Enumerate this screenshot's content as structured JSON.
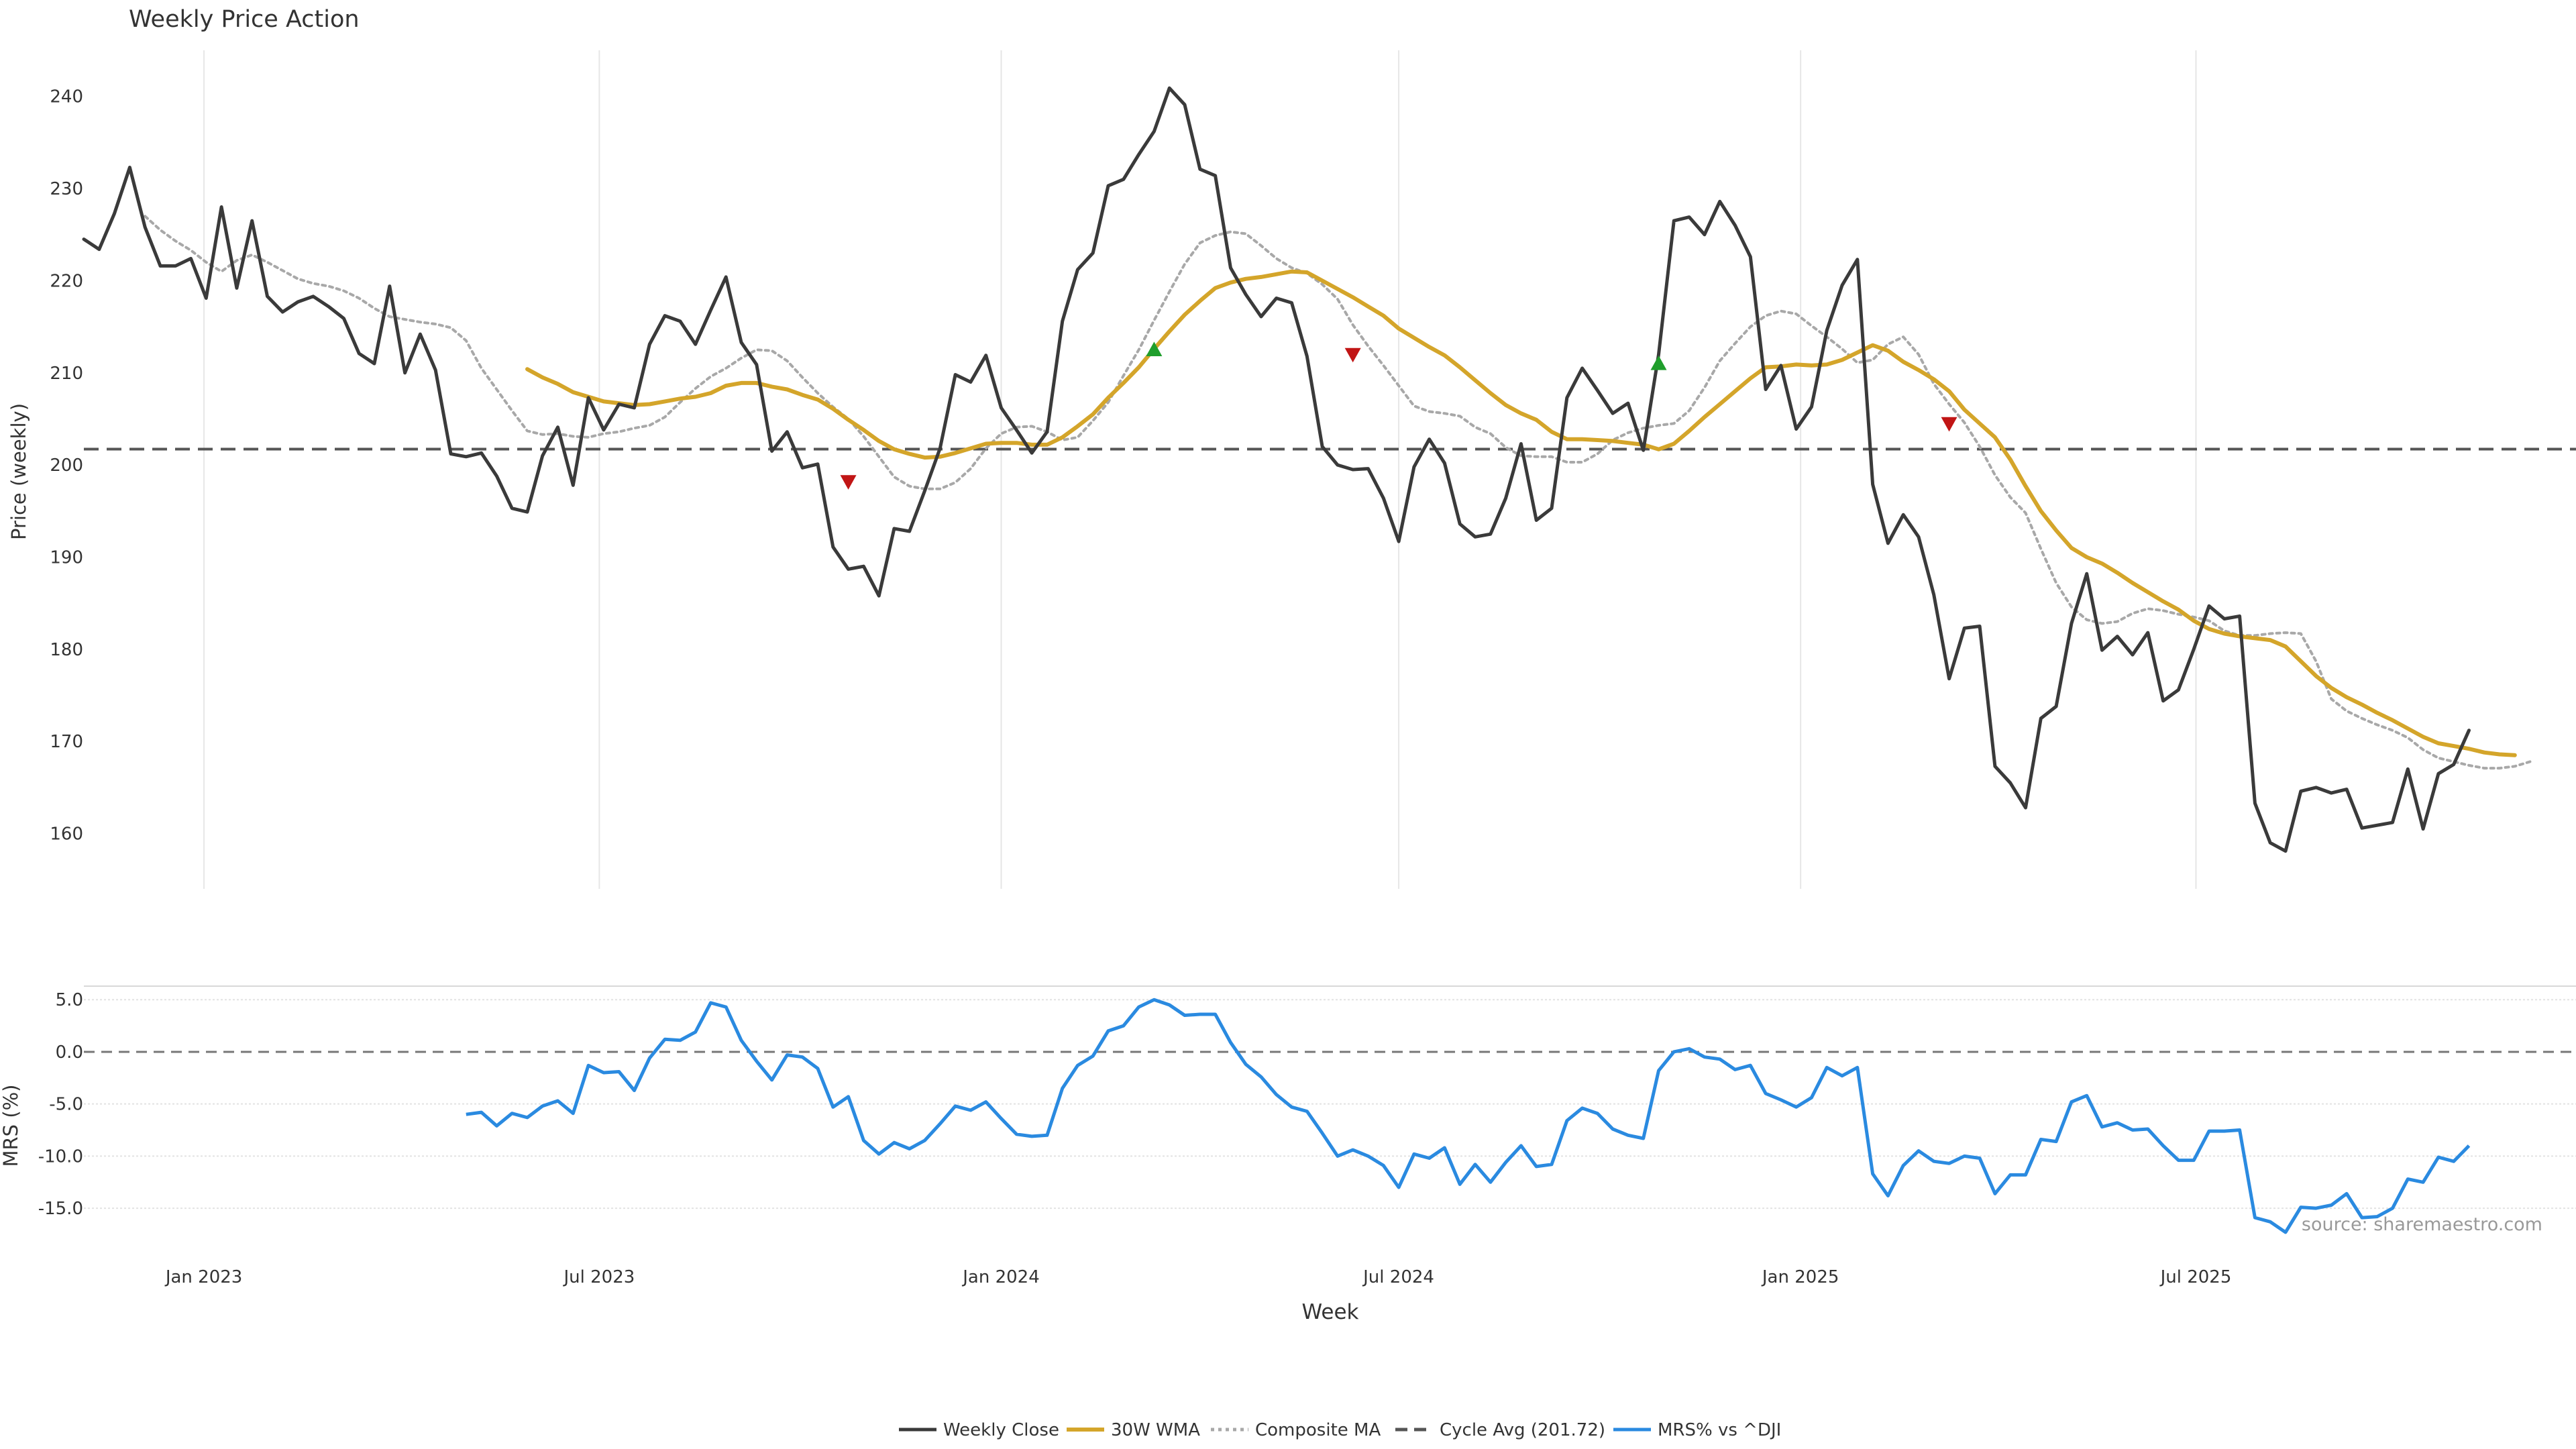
{
  "title": "Weekly Price Action",
  "source": "source: sharemaestro.com",
  "colors": {
    "close": "#3a3a3a",
    "wma": "#d4a52a",
    "composite": "#a8a8a8",
    "cycle": "#555555",
    "mrs": "#2a8ae0",
    "buy": "#1f9e2c",
    "sell": "#c11515",
    "grid": "#e6e6e6"
  },
  "chart_data": [
    {
      "type": "line",
      "title": "Weekly Price Action",
      "xlabel": "",
      "ylabel": "Price (weekly)",
      "ylim": [
        154,
        245
      ],
      "yticks": [
        160,
        170,
        180,
        190,
        200,
        210,
        220,
        230,
        240
      ],
      "x_start": "2022-11-07",
      "x_step_days": 7,
      "xlim": [
        "2022-11-07",
        "2025-12-22"
      ],
      "xticks": [
        {
          "date": "2023-01-01",
          "label": "Jan 2023"
        },
        {
          "date": "2023-07-01",
          "label": "Jul 2023"
        },
        {
          "date": "2024-01-01",
          "label": "Jan 2024"
        },
        {
          "date": "2024-07-01",
          "label": "Jul 2024"
        },
        {
          "date": "2025-01-01",
          "label": "Jan 2025"
        },
        {
          "date": "2025-07-01",
          "label": "Jul 2025"
        }
      ],
      "cycle_avg": 201.72,
      "series": [
        {
          "name": "Weekly Close",
          "key": "close",
          "start_index": 0,
          "values": [
            224.5,
            223.4,
            227.3,
            232.3,
            225.8,
            221.6,
            221.6,
            222.4,
            218.1,
            228.0,
            219.2,
            226.5,
            218.3,
            216.6,
            217.7,
            218.3,
            217.2,
            215.9,
            212.1,
            211.0,
            219.4,
            210.0,
            214.2,
            210.3,
            201.2,
            200.9,
            201.3,
            198.8,
            195.3,
            194.9,
            201.0,
            204.1,
            197.8,
            207.3,
            203.8,
            206.6,
            206.2,
            213.1,
            216.2,
            215.6,
            213.1,
            216.8,
            220.4,
            213.3,
            210.9,
            201.5,
            203.6,
            199.7,
            200.1,
            191.1,
            188.7,
            189.0,
            185.8,
            193.1,
            192.8,
            197.2,
            201.8,
            209.8,
            209.0,
            211.9,
            206.2,
            203.8,
            201.3,
            203.6,
            215.6,
            221.2,
            223.0,
            230.3,
            231.0,
            233.7,
            236.2,
            240.9,
            239.1,
            232.1,
            231.4,
            221.4,
            218.5,
            216.1,
            218.1,
            217.6,
            211.8,
            202.0,
            200.0,
            199.5,
            199.6,
            196.4,
            191.7,
            199.8,
            202.8,
            200.2,
            193.6,
            192.2,
            192.5,
            196.4,
            202.3,
            194.0,
            195.3,
            207.3,
            210.5,
            208.1,
            205.6,
            206.7,
            201.6,
            212.0,
            226.5,
            226.9,
            225.0,
            228.6,
            226.0,
            222.6,
            208.2,
            210.8,
            203.9,
            206.3,
            214.6,
            219.5,
            222.3,
            197.9,
            191.5,
            194.6,
            192.2,
            185.9,
            176.8,
            182.3,
            182.5,
            167.3,
            165.5,
            162.8,
            172.5,
            173.8,
            182.8,
            188.2,
            179.9,
            181.4,
            179.4,
            181.8,
            174.4,
            175.6,
            180.0,
            184.7,
            183.3,
            183.6,
            163.3,
            159.0,
            158.1,
            164.6,
            165.0,
            164.4,
            164.8,
            160.6,
            160.9,
            161.2,
            167.0,
            160.5,
            166.5,
            167.5,
            171.2
          ]
        },
        {
          "name": "30W WMA",
          "key": "wma",
          "start_index": 29,
          "values": [
            210.4,
            209.5,
            208.8,
            207.9,
            207.4,
            206.9,
            206.7,
            206.5,
            206.6,
            206.9,
            207.2,
            207.4,
            207.8,
            208.6,
            208.9,
            208.9,
            208.5,
            208.2,
            207.6,
            207.1,
            206.1,
            204.9,
            203.8,
            202.6,
            201.7,
            201.2,
            200.8,
            200.9,
            201.3,
            201.8,
            202.3,
            202.4,
            202.4,
            202.2,
            202.2,
            203.0,
            204.2,
            205.5,
            207.3,
            208.9,
            210.6,
            212.6,
            214.5,
            216.3,
            217.8,
            219.2,
            219.8,
            220.2,
            220.4,
            220.7,
            221.0,
            220.9,
            220.0,
            219.1,
            218.2,
            217.2,
            216.2,
            214.8,
            213.8,
            212.8,
            211.9,
            210.6,
            209.2,
            207.8,
            206.5,
            205.6,
            204.9,
            203.6,
            202.8,
            202.8,
            202.7,
            202.6,
            202.4,
            202.2,
            201.7,
            202.3,
            203.7,
            205.2,
            206.6,
            208.0,
            209.4,
            210.6,
            210.7,
            210.9,
            210.8,
            210.9,
            211.4,
            212.2,
            213.0,
            212.4,
            211.2,
            210.3,
            209.3,
            208.0,
            206.0,
            204.5,
            203.0,
            200.6,
            197.7,
            195.0,
            192.9,
            191.0,
            190.0,
            189.3,
            188.3,
            187.2,
            186.2,
            185.2,
            184.3,
            183.1,
            182.2,
            181.7,
            181.4,
            181.2,
            181.0,
            180.3,
            178.7,
            177.1,
            175.8,
            174.8,
            174.0,
            173.1,
            172.3,
            171.4,
            170.5,
            169.8,
            169.5,
            169.2,
            168.8,
            168.6,
            168.5
          ]
        },
        {
          "name": "Composite MA",
          "key": "composite",
          "start_index": 4,
          "values": [
            227.0,
            225.5,
            224.3,
            223.3,
            222.0,
            221.0,
            222.2,
            222.8,
            222.0,
            221.1,
            220.2,
            219.7,
            219.4,
            218.9,
            218.1,
            217.0,
            216.1,
            215.8,
            215.5,
            215.3,
            214.9,
            213.5,
            210.5,
            208.2,
            205.9,
            203.7,
            203.3,
            203.4,
            203.1,
            203.0,
            203.4,
            203.6,
            204.0,
            204.3,
            205.2,
            206.8,
            208.3,
            209.6,
            210.5,
            211.6,
            212.5,
            212.4,
            211.3,
            209.5,
            207.8,
            206.3,
            205.0,
            203.1,
            200.9,
            198.7,
            197.7,
            197.4,
            197.4,
            198.1,
            199.6,
            201.8,
            203.4,
            204.1,
            204.2,
            203.6,
            202.7,
            203.0,
            204.8,
            206.8,
            209.7,
            212.5,
            215.7,
            218.8,
            221.8,
            224.1,
            224.9,
            225.3,
            225.1,
            223.8,
            222.4,
            221.4,
            220.8,
            219.6,
            218.0,
            215.2,
            212.9,
            210.8,
            208.6,
            206.4,
            205.8,
            205.6,
            205.3,
            204.1,
            203.4,
            201.9,
            201.0,
            200.9,
            200.9,
            200.3,
            200.3,
            201.2,
            202.7,
            203.5,
            204.0,
            204.3,
            204.5,
            205.9,
            208.4,
            211.3,
            213.2,
            215.0,
            216.2,
            216.7,
            216.4,
            215.1,
            213.9,
            212.6,
            211.1,
            211.4,
            213.1,
            213.9,
            212.0,
            208.8,
            206.6,
            204.6,
            202.0,
            198.9,
            196.5,
            194.8,
            190.9,
            187.2,
            184.6,
            183.2,
            182.8,
            183.0,
            183.9,
            184.4,
            184.2,
            183.8,
            183.5,
            183.1,
            182.0,
            181.5,
            181.5,
            181.7,
            181.8,
            181.7,
            178.7,
            174.6,
            173.3,
            172.5,
            171.8,
            171.2,
            170.4,
            169.1,
            168.2,
            167.8,
            167.4,
            167.1,
            167.1,
            167.3,
            167.8
          ]
        }
      ],
      "signals": [
        {
          "type": "sell",
          "x": "2023-10-23",
          "y": 198.2
        },
        {
          "type": "buy",
          "x": "2024-03-11",
          "y": 212.5
        },
        {
          "type": "sell",
          "x": "2024-06-10",
          "y": 212.0
        },
        {
          "type": "buy",
          "x": "2024-10-28",
          "y": 211.0
        },
        {
          "type": "sell",
          "x": "2025-03-10",
          "y": 204.5
        }
      ]
    },
    {
      "type": "line",
      "xlabel": "Week",
      "ylabel": "MRS (%)",
      "ylim": [
        -17.5,
        6.3
      ],
      "yticks": [
        5.0,
        0.0,
        -5.0,
        -10.0,
        -15.0
      ],
      "ytick_labels": [
        "5.0",
        "0.0",
        "-5.0",
        "-10.0",
        "-15.0"
      ],
      "zero_line": 0,
      "series": [
        {
          "name": "MRS% vs ^DJI",
          "key": "mrs",
          "start_index": 25,
          "values": [
            -6.0,
            -5.8,
            -7.1,
            -5.9,
            -6.3,
            -5.2,
            -4.7,
            -5.9,
            -1.3,
            -2.0,
            -1.9,
            -3.7,
            -0.6,
            1.2,
            1.1,
            1.9,
            4.7,
            4.3,
            1.1,
            -0.9,
            -2.7,
            -0.3,
            -0.5,
            -1.6,
            -5.3,
            -4.3,
            -8.5,
            -9.8,
            -8.7,
            -9.3,
            -8.5,
            -6.9,
            -5.2,
            -5.6,
            -4.8,
            -6.4,
            -7.9,
            -8.1,
            -8.0,
            -3.5,
            -1.3,
            -0.4,
            2.0,
            2.5,
            4.3,
            5.0,
            4.5,
            3.5,
            3.6,
            3.6,
            0.9,
            -1.2,
            -2.4,
            -4.1,
            -5.3,
            -5.7,
            -7.8,
            -10.0,
            -9.4,
            -10.0,
            -10.9,
            -13.0,
            -9.8,
            -10.2,
            -9.2,
            -12.7,
            -10.8,
            -12.5,
            -10.6,
            -9.0,
            -11.0,
            -10.8,
            -6.6,
            -5.4,
            -5.9,
            -7.4,
            -8.0,
            -8.3,
            -1.8,
            0.0,
            0.3,
            -0.5,
            -0.7,
            -1.7,
            -1.3,
            -4.0,
            -4.6,
            -5.3,
            -4.4,
            -1.5,
            -2.3,
            -1.5,
            -11.7,
            -13.8,
            -10.9,
            -9.5,
            -10.5,
            -10.7,
            -10.0,
            -10.2,
            -13.6,
            -11.8,
            -11.8,
            -8.4,
            -8.6,
            -4.8,
            -4.2,
            -7.2,
            -6.8,
            -7.5,
            -7.4,
            -9.0,
            -10.4,
            -10.4,
            -7.6,
            -7.6,
            -7.5,
            -15.9,
            -16.3,
            -17.3,
            -14.9,
            -15.0,
            -14.7,
            -13.6,
            -15.9,
            -15.8,
            -15.0,
            -12.2,
            -12.5,
            -10.1,
            -10.5,
            -9.0
          ]
        }
      ]
    }
  ],
  "legend": [
    {
      "label": "Weekly Close",
      "key": "close",
      "style": "solid"
    },
    {
      "label": "30W WMA",
      "key": "wma",
      "style": "solid"
    },
    {
      "label": "Composite MA",
      "key": "composite",
      "style": "dotted"
    },
    {
      "label": "Cycle Avg (201.72)",
      "key": "cycle",
      "style": "dashed"
    },
    {
      "label": "MRS% vs ^DJI",
      "key": "mrs",
      "style": "solid"
    }
  ]
}
